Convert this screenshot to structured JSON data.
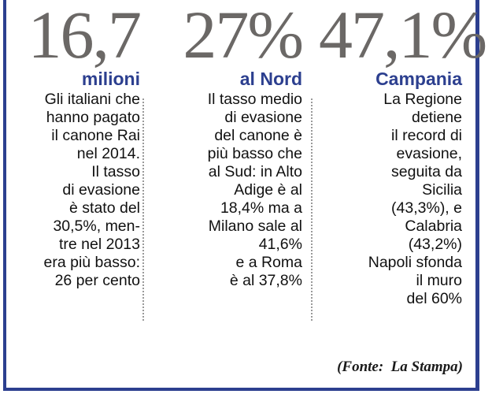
{
  "columns": [
    {
      "big_number": "16,7",
      "subtitle": "milioni",
      "lines": [
        "Gli italiani che",
        "hanno pagato",
        "il canone Rai",
        "nel 2014.",
        "Il tasso",
        "di evasione",
        "è stato del",
        "30,5%, men-",
        "tre nel 2013",
        "era più basso:",
        "26 per cento"
      ]
    },
    {
      "big_number": "27%",
      "subtitle": "al Nord",
      "lines": [
        "Il tasso medio",
        "di evasione",
        "del canone è",
        "più basso che",
        "al Sud: in Alto",
        "Adige è al",
        "18,4% ma a",
        "Milano sale al",
        "41,6%",
        "e a Roma",
        "è al 37,8%"
      ]
    },
    {
      "big_number": "47,1%",
      "subtitle": "Campania",
      "lines": [
        "La Regione",
        "detiene",
        "il record di",
        "evasione,",
        "seguita da",
        "Sicilia",
        "(43,3%), e",
        "Calabria",
        "(43,2%)",
        "Napoli sfonda",
        "il muro",
        "del 60%"
      ]
    }
  ],
  "source": "(Fonte:  La Stampa)",
  "colors": {
    "accent": "#2c3f8f",
    "big_number": "#6b6866",
    "text": "#111111"
  }
}
